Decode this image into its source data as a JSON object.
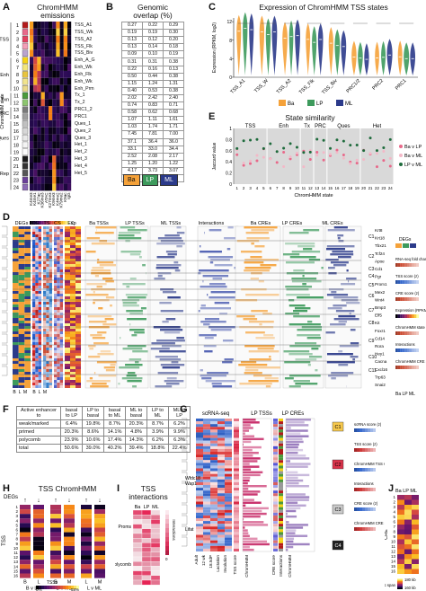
{
  "panels": {
    "a": {
      "letter": "A",
      "title": "ChromHMM\nemissions",
      "groups": [
        "TSS",
        "Enh",
        "Txn",
        "PRC",
        "Ques",
        "Het/Rep"
      ],
      "side_label": "ChromHMM state",
      "states": [
        "1",
        "2",
        "3",
        "4",
        "5",
        "6",
        "7",
        "8",
        "9",
        "10",
        "11",
        "12",
        "13",
        "14",
        "15",
        "16",
        "17",
        "18",
        "19",
        "20",
        "21",
        "22",
        "23",
        "24"
      ],
      "marks": [
        "K4me3",
        "K4me1",
        "K27ac",
        "K36me3",
        "ATAC",
        "K27me3",
        "K9me3",
        "K4me2",
        "K79me2",
        "K9ac",
        "IgG"
      ],
      "legend_label": "Observed frequency"
    },
    "b": {
      "letter": "B",
      "title": "Genomic\noverlap (%)",
      "state_names": [
        "TSS_A1",
        "TSS_Wk",
        "TSS_A2",
        "TSS_Flk",
        "TSS_Biv",
        "Enh_A_G",
        "Enh_Wk",
        "Enh_Flk",
        "Enh_Wk",
        "Enh_Prm",
        "Tx_1",
        "Tx_2",
        "PRC1_2",
        "PRC1",
        "Ques_1",
        "Ques_2",
        "Ques_3",
        "Het_1",
        "Het_2",
        "Het_3",
        "Het_4",
        "Het_5"
      ],
      "rows": [
        [
          "0.27",
          "0.22",
          "0.29"
        ],
        [
          "0.19",
          "0.19",
          "0.30"
        ],
        [
          "0.13",
          "0.12",
          "0.20"
        ],
        [
          "0.13",
          "0.14",
          "0.18"
        ],
        [
          "0.09",
          "0.10",
          "0.19"
        ],
        [
          "0.31",
          "0.31",
          "0.38"
        ],
        [
          "0.22",
          "0.16",
          "0.13"
        ],
        [
          "0.50",
          "0.44",
          "0.38"
        ],
        [
          "1.15",
          "1.24",
          "1.31"
        ],
        [
          "0.40",
          "0.53",
          "0.38"
        ],
        [
          "2.02",
          "2.42",
          "2.40"
        ],
        [
          "0.74",
          "0.83",
          "0.71"
        ],
        [
          "0.58",
          "0.62",
          "0.68"
        ],
        [
          "1.07",
          "1.11",
          "1.61"
        ],
        [
          "1.03",
          "1.74",
          "1.71"
        ],
        [
          "7.45",
          "7.81",
          "7.00"
        ],
        [
          "37.1",
          "36.4",
          "36.0"
        ],
        [
          "33.1",
          "33.0",
          "34.4"
        ],
        [
          "2.52",
          "2.08",
          "2.17"
        ],
        [
          "1.25",
          "1.20",
          "1.22"
        ],
        [
          "4.17",
          "3.73",
          "3.07"
        ],
        [
          "2.10",
          "2.52",
          "2.48"
        ]
      ],
      "legend": [
        "Ba",
        "LP",
        "ML"
      ]
    },
    "c": {
      "letter": "C",
      "title": "Expression of ChromHMM TSS states",
      "ylabel": "Expression (RPKM, log2)",
      "categories": [
        "TSS_A1",
        "TSS_W",
        "TSS_A2",
        "TSS_Flk",
        "TSS_Biv",
        "PRC1/2",
        "PRC2",
        "PRC1"
      ],
      "yticks": [
        "0",
        "4",
        "8",
        "12"
      ],
      "legend": [
        "Ba",
        "LP",
        "ML"
      ]
    },
    "e": {
      "letter": "E",
      "title": "State similarity",
      "groups": [
        "TSS",
        "Enh",
        "Tx",
        "PRC",
        "Ques",
        "Het"
      ],
      "ylabel": "Jaccard value",
      "xlabel": "ChromHMM state",
      "yticks": [
        "0",
        "0.2",
        "0.4",
        "0.6",
        "0.8",
        "1"
      ],
      "legend": [
        "Ba v LP",
        "Ba v ML",
        "LP v ML"
      ]
    },
    "d": {
      "letter": "D",
      "top_labels": [
        "DEGs",
        "DE",
        "TS",
        "CS",
        "Exp",
        "Ba TSSs",
        "LP TSSs",
        "ML TSSs",
        "Interactions",
        "Ba CREs",
        "LP CREs",
        "ML CREs"
      ],
      "clusters": [
        "C1",
        "C2",
        "C3",
        "C4",
        "C5",
        "C6",
        "C7",
        "C8",
        "C9",
        "C10",
        "C11"
      ],
      "genes": [
        "Krt8",
        "Krt18",
        "Tbx21",
        "Tcf24",
        "Apoe",
        "Cd1",
        "Pgr",
        "Prom1",
        "Mex2",
        "Wnt4",
        "Bmp3",
        "Elf5",
        "Kit",
        "Foxr1",
        "Cd14",
        "Rora",
        "Hey1",
        "Cacna",
        "Cxcl16",
        "Trp63",
        "Snai2"
      ],
      "right_legend": [
        "DEGs",
        "RNA-seq fold change (z)",
        "TSS score (z)",
        "CRE score (z)",
        "Expression (RPKM, log2)",
        "ChromHMM state",
        "Interactions",
        "ChromHMM CRE states"
      ],
      "right_legend_bottom": "Ba  LP  ML",
      "bottom_labels": [
        "B",
        "L",
        "M",
        "B",
        "L",
        "M"
      ]
    },
    "f": {
      "letter": "F",
      "header": [
        "Active enhancer to",
        "basal to LP",
        "LP to basal",
        "basal to ML",
        "ML to basal",
        "LP to ML",
        "ML to LP"
      ],
      "rows": [
        [
          "weak/marked",
          "6.4%",
          "19.8%",
          "8.7%",
          "20.3%",
          "8.7%",
          "6.2%"
        ],
        [
          "primed",
          "20.3%",
          "8.6%",
          "14.1%",
          "4.8%",
          "3.9%",
          "9.9%"
        ],
        [
          "polycomb",
          "23.9%",
          "10.6%",
          "17.4%",
          "14.3%",
          "6.2%",
          "6.3%"
        ],
        [
          "total",
          "50.6%",
          "39.0%",
          "40.2%",
          "39.4%",
          "18.8%",
          "22.4%"
        ]
      ]
    },
    "g": {
      "letter": "G",
      "top_labels": [
        "scRNA-seq",
        "LP TSSs",
        "LP CREs"
      ],
      "chips": [
        "C1",
        "C2",
        "C3",
        "C4"
      ],
      "genes": [
        "Wfdc18",
        "Wap1",
        "Lifat"
      ],
      "bottom_labels": [
        "Adult",
        "12 wk",
        "18.5dP",
        "Lactation",
        "Involution",
        "TSS score",
        "ChromHMM",
        "CRE score",
        "Interactions",
        "ChromHMM"
      ],
      "legend": [
        "scRNA score (z)",
        "TSS score (z)",
        "ChromHMM TSS states",
        "Interactions",
        "CRE score (z)",
        "ChromHMM CRE states"
      ]
    },
    "h": {
      "letter": "H",
      "title": "TSS ChromHMM",
      "degs_label": "DEGs",
      "ylabel": "TSS",
      "states": [
        "1",
        "2",
        "3",
        "4",
        "5",
        "6",
        "7",
        "8",
        "9",
        "10",
        "11",
        "12",
        "13",
        "14",
        "15",
        "16"
      ],
      "pairs": [
        "B v LP",
        "B v ML",
        "L v ML"
      ],
      "sub": [
        "B",
        "L",
        "B",
        "M",
        "L",
        "M"
      ],
      "legend_label": "TSSs",
      "legend_range": [
        "0%",
        "58%"
      ]
    },
    "i": {
      "letter": "I",
      "title": "TSS\ninteractions",
      "cols": [
        "Ba",
        "LP",
        "ML"
      ],
      "rows": [
        "Proms",
        "Polycomb"
      ],
      "legend": [
        "0",
        "Interactions"
      ]
    },
    "j": {
      "letter": "J",
      "cols": "Ba LP ML",
      "ylabel": "CRE",
      "states": [
        "1",
        "2",
        "3",
        "4",
        "5",
        "6",
        "7",
        "8",
        "9",
        "10",
        "11",
        "12",
        "13",
        "14",
        "15",
        "16"
      ],
      "legend_label": "Genomic span",
      "legend_range": [
        "180 kb",
        "160 kb"
      ]
    }
  }
}
